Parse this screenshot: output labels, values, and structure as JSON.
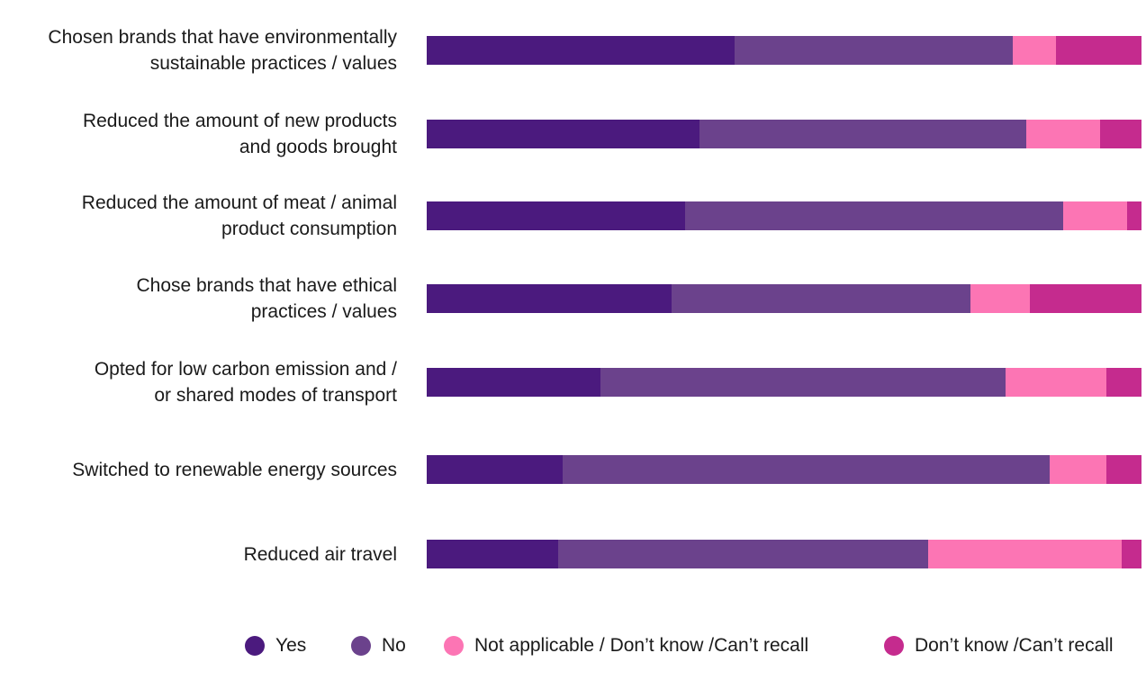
{
  "chart_data": {
    "type": "bar",
    "orientation": "horizontal",
    "stacked": true,
    "normalized_percent": true,
    "title": "",
    "xlabel": "",
    "ylabel": "",
    "xlim": [
      0,
      100
    ],
    "grid": false,
    "legend_position": "bottom",
    "categories": [
      [
        "Chosen brands that have environmentally",
        "sustainable practices / values"
      ],
      [
        "Reduced the amount of new products",
        "and goods brought"
      ],
      [
        "Reduced the amount of meat / animal",
        "product consumption"
      ],
      [
        "Chose brands that have ethical",
        "practices / values"
      ],
      [
        "Opted for low carbon emission and /",
        "or  shared modes of transport"
      ],
      [
        "Switched to renewable energy sources"
      ],
      [
        "Reduced air travel"
      ]
    ],
    "series": [
      {
        "name": "Yes",
        "color": "#4b1a7e",
        "values": [
          43.1,
          38.2,
          36.1,
          34.3,
          24.3,
          19.0,
          18.4
        ]
      },
      {
        "name": "No",
        "color": "#6b428c",
        "values": [
          38.9,
          45.7,
          53.0,
          41.8,
          56.7,
          68.2,
          51.7
        ]
      },
      {
        "name": "Not applicable / Don’t know /Can’t recall",
        "color": "#fc75b4",
        "values": [
          6.0,
          10.3,
          8.9,
          8.3,
          14.1,
          7.9,
          27.1
        ]
      },
      {
        "name": "Don’t know /Can’t recall",
        "color": "#c52b8e",
        "values": [
          12.0,
          5.8,
          2.0,
          15.6,
          4.9,
          4.9,
          2.8
        ]
      }
    ]
  }
}
